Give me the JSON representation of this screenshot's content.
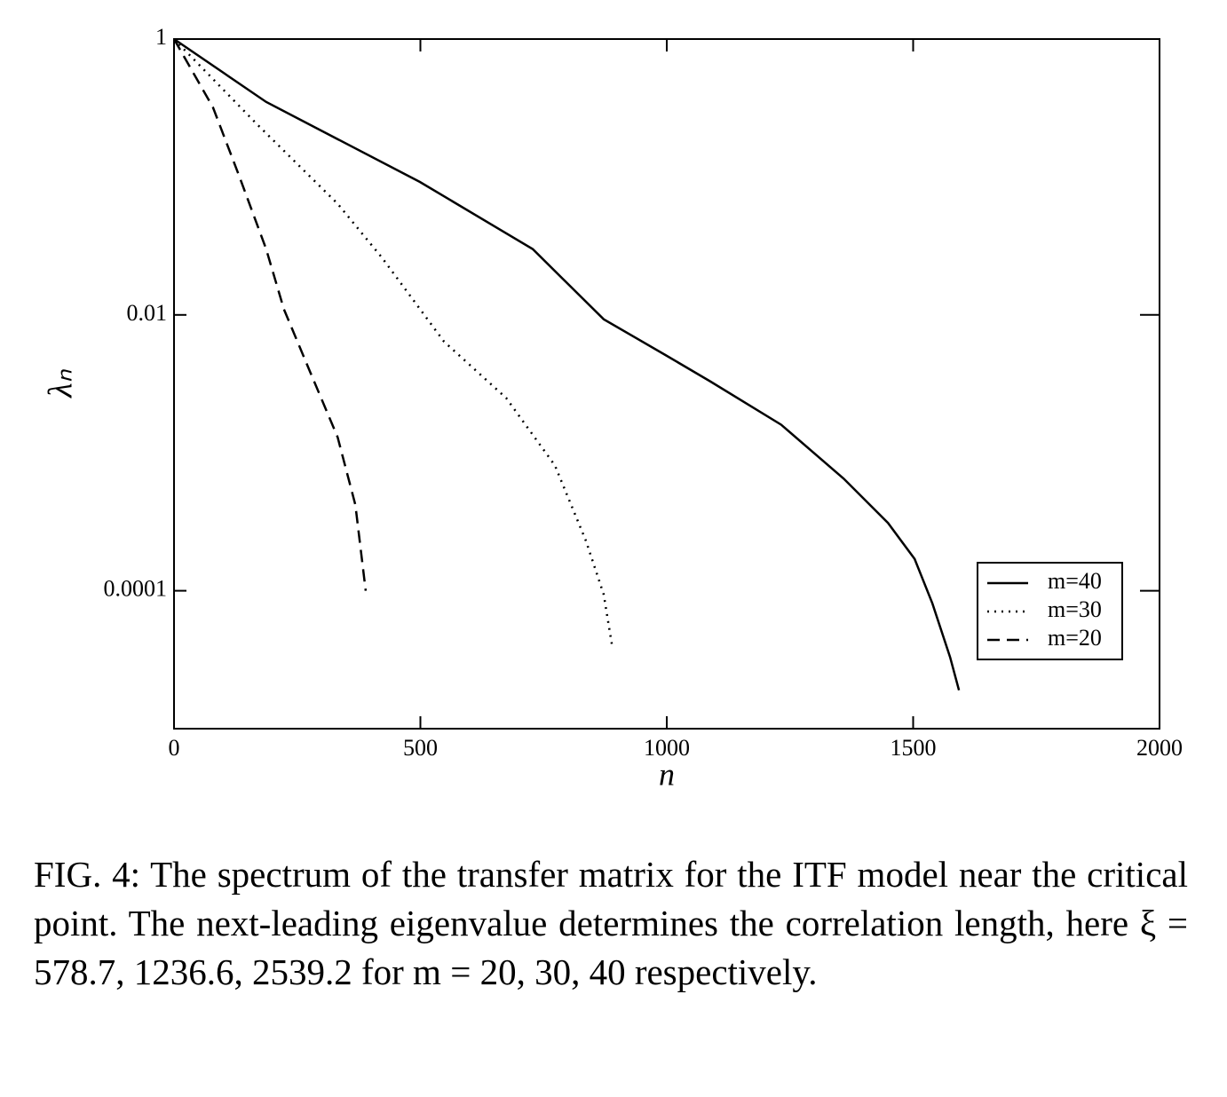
{
  "chart_data": {
    "type": "line",
    "x_label": "n",
    "y_label": "λₙ",
    "xlim": [
      0,
      2000
    ],
    "xticks": [
      0,
      500,
      1000,
      1500,
      2000
    ],
    "ylim": [
      1e-05,
      1
    ],
    "yticks": [
      1,
      0.01,
      0.0001
    ],
    "log_y": true,
    "legend": "lower right",
    "series": [
      {
        "name": "m=40",
        "color": "#000000",
        "style": "solid",
        "x": [
          0,
          187,
          499,
          728,
          872,
          998,
          1088,
          1232,
          1359,
          1449,
          1503,
          1539,
          1575,
          1593
        ],
        "values": [
          1,
          0.35,
          0.092,
          0.03,
          0.0093,
          0.0051,
          0.0033,
          0.0016,
          0.00065,
          0.00031,
          0.00017,
          8.1e-05,
          3.3e-05,
          1.9e-05
        ]
      },
      {
        "name": "m=30",
        "color": "#000000",
        "style": "dotted",
        "x": [
          0,
          169,
          332,
          422,
          548,
          674,
          773,
          836,
          872,
          890
        ],
        "values": [
          1,
          0.24,
          0.064,
          0.026,
          0.0064,
          0.0025,
          0.00081,
          0.00023,
          9.4e-05,
          3.8e-05
        ]
      },
      {
        "name": "m=20",
        "color": "#000000",
        "style": "dashed",
        "x": [
          0,
          79,
          133,
          187,
          223,
          277,
          332,
          368,
          389
        ],
        "values": [
          1,
          0.32,
          0.1,
          0.03,
          0.011,
          0.0038,
          0.0013,
          0.00042,
          0.0001
        ]
      }
    ]
  },
  "caption": "FIG. 4: The spectrum of the transfer matrix for the ITF model near the critical point. The next-leading eigenvalue determines the correlation length, here ξ = 578.7, 1236.6, 2539.2 for m = 20, 30, 40 respectively."
}
